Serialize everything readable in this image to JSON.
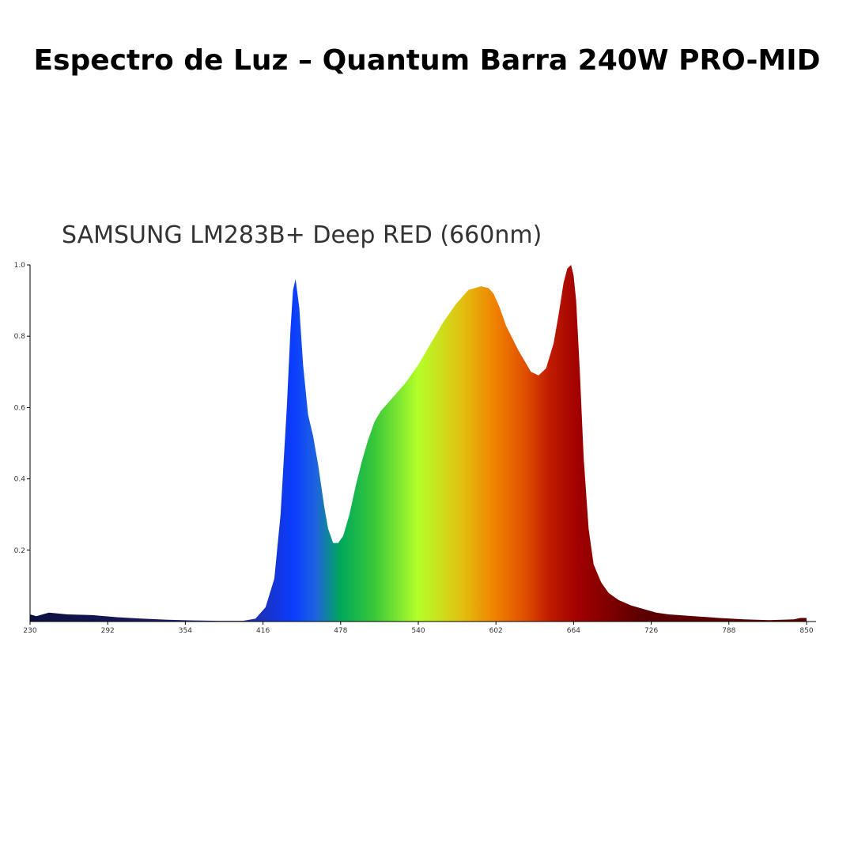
{
  "page": {
    "headline": "Espectro de Luz – Quantum Barra 240W PRO-MID"
  },
  "chart_data": {
    "type": "area",
    "title": "SAMSUNG LM283B+ Deep RED (660nm)",
    "xlabel": "",
    "ylabel": "",
    "xlim": [
      230,
      850
    ],
    "ylim": [
      0,
      1.0
    ],
    "grid": false,
    "legend": "none",
    "x_ticks": [
      "230",
      "292",
      "354",
      "416",
      "478",
      "540",
      "602",
      "664",
      "726",
      "788",
      "850"
    ],
    "y_ticks": [
      "0.2",
      "0.4",
      "0.6",
      "0.8",
      "1.0"
    ],
    "series": [
      {
        "x": [
          230,
          235,
          245,
          260,
          280,
          300,
          320,
          340,
          360,
          380,
          400,
          410,
          418,
          425,
          430,
          435,
          438,
          440,
          442,
          445,
          448,
          452,
          456,
          460,
          465,
          468,
          472,
          476,
          480,
          485,
          490,
          495,
          500,
          505,
          510,
          515,
          520,
          530,
          540,
          550,
          560,
          570,
          580,
          590,
          596,
          600,
          605,
          610,
          620,
          630,
          636,
          642,
          648,
          652,
          656,
          659,
          662,
          664,
          666,
          669,
          672,
          676,
          680,
          686,
          692,
          700,
          710,
          720,
          730,
          740,
          760,
          780,
          800,
          820,
          840,
          845,
          850
        ],
        "y": [
          0.02,
          0.015,
          0.025,
          0.02,
          0.018,
          0.012,
          0.008,
          0.005,
          0.003,
          0.002,
          0.002,
          0.008,
          0.04,
          0.12,
          0.3,
          0.6,
          0.82,
          0.93,
          0.96,
          0.88,
          0.72,
          0.58,
          0.52,
          0.44,
          0.32,
          0.26,
          0.22,
          0.22,
          0.24,
          0.3,
          0.38,
          0.45,
          0.51,
          0.56,
          0.59,
          0.61,
          0.63,
          0.67,
          0.72,
          0.78,
          0.84,
          0.89,
          0.93,
          0.94,
          0.935,
          0.92,
          0.88,
          0.83,
          0.76,
          0.7,
          0.69,
          0.71,
          0.78,
          0.86,
          0.95,
          0.99,
          1.0,
          0.97,
          0.9,
          0.7,
          0.46,
          0.26,
          0.16,
          0.11,
          0.08,
          0.06,
          0.045,
          0.035,
          0.025,
          0.02,
          0.015,
          0.01,
          0.006,
          0.004,
          0.006,
          0.01,
          0.01
        ]
      }
    ],
    "colors": {
      "spectrum_stops": [
        "#0b1040",
        "#1a1a60",
        "#1f2fb0",
        "#0a3cff",
        "#1f62e0",
        "#00a85a",
        "#3ac83a",
        "#b4ff28",
        "#e2c010",
        "#f08000",
        "#e05000",
        "#c01a00",
        "#a00000",
        "#5a0000"
      ],
      "axis": "#000000"
    }
  }
}
